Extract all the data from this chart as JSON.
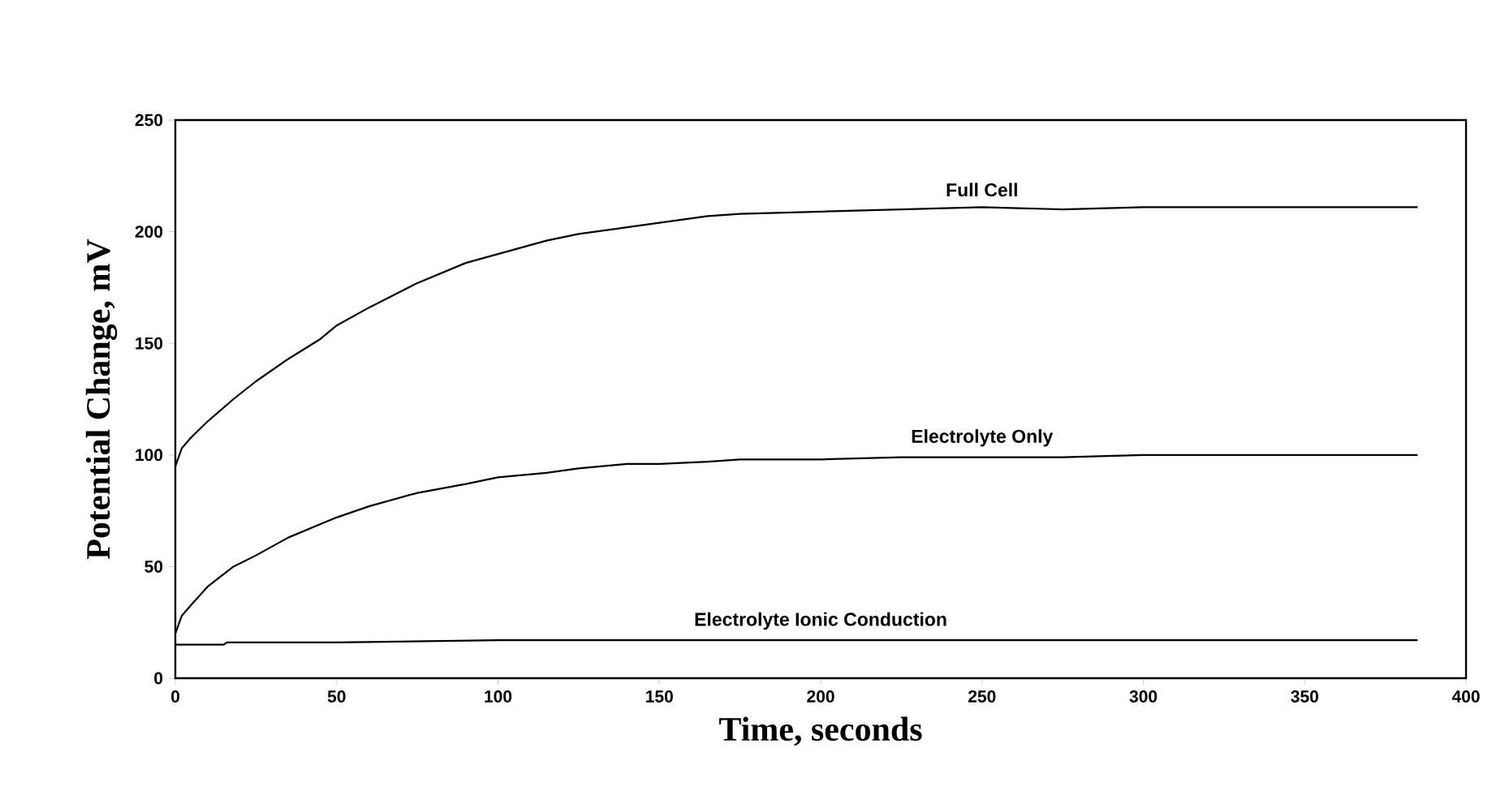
{
  "chart_data": {
    "type": "line",
    "xlabel": "Time, seconds",
    "ylabel": "Potential Change, mV",
    "xlim": [
      0,
      400
    ],
    "ylim": [
      0,
      250
    ],
    "xticks": [
      0,
      50,
      100,
      150,
      200,
      250,
      300,
      350,
      400
    ],
    "yticks": [
      0,
      50,
      100,
      150,
      200,
      250
    ],
    "grid": false,
    "legend": false,
    "marker": "none",
    "line_style": "solid",
    "series": [
      {
        "name": "Full Cell",
        "color": "#000000",
        "x": [
          0,
          2,
          5,
          10,
          18,
          25,
          35,
          45,
          50,
          60,
          75,
          90,
          100,
          115,
          125,
          140,
          150,
          165,
          175,
          200,
          225,
          250,
          275,
          300,
          340,
          385
        ],
        "values": [
          95,
          103,
          108,
          115,
          125,
          133,
          143,
          152,
          158,
          166,
          177,
          186,
          190,
          196,
          199,
          202,
          204,
          207,
          208,
          209,
          210,
          211,
          210,
          211,
          211,
          211
        ]
      },
      {
        "name": "Electrolyte Only",
        "color": "#000000",
        "x": [
          0,
          2,
          5,
          10,
          18,
          25,
          35,
          45,
          50,
          60,
          75,
          90,
          100,
          115,
          125,
          140,
          150,
          165,
          175,
          200,
          225,
          250,
          275,
          300,
          340,
          385
        ],
        "values": [
          20,
          28,
          33,
          41,
          50,
          55,
          63,
          69,
          72,
          77,
          83,
          87,
          90,
          92,
          94,
          96,
          96,
          97,
          98,
          98,
          99,
          99,
          99,
          100,
          100,
          100
        ]
      },
      {
        "name": "Electrolyte Ionic Conduction",
        "color": "#000000",
        "x": [
          0,
          15,
          16,
          50,
          100,
          130,
          200,
          300,
          385
        ],
        "values": [
          15,
          15,
          16,
          16,
          17,
          17,
          17,
          17,
          17
        ]
      }
    ]
  }
}
